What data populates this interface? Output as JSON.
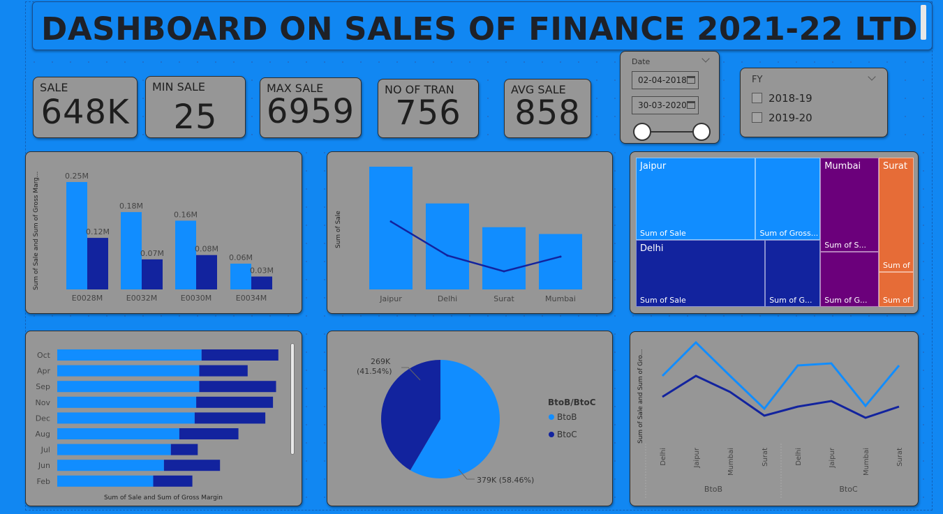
{
  "header": {
    "title": "DASHBOARD ON SALES OF FINANCE 2021-22 LTD"
  },
  "kpis": [
    {
      "label": "SALE",
      "value": "648K"
    },
    {
      "label": "MIN SALE",
      "value": "25"
    },
    {
      "label": "MAX SALE",
      "value": "6959"
    },
    {
      "label": "NO OF TRAN",
      "value": "756"
    },
    {
      "label": "AVG SALE",
      "value": "858"
    }
  ],
  "date_slicer": {
    "title": "Date",
    "start": "02-04-2018",
    "end": "30-03-2020",
    "start_icon": "calendar-icon",
    "end_icon": "calendar-icon",
    "range": [
      0,
      1
    ]
  },
  "fy_slicer": {
    "title": "FY",
    "options": [
      {
        "label": "2018-19",
        "checked": false
      },
      {
        "label": "2019-20",
        "checked": false
      }
    ]
  },
  "colors": {
    "background": "#1187f2",
    "card": "#969696",
    "sale": "#118dff",
    "margin": "#12239e",
    "purple": "#6b007b",
    "orange": "#e66c37"
  },
  "chart_data": [
    {
      "type": "bar",
      "categories": [
        "E0028M",
        "E0032M",
        "E0030M",
        "E0034M"
      ],
      "series": [
        {
          "name": "Sum of Sale",
          "values": [
            250000,
            180000,
            160000,
            60000
          ],
          "labels": [
            "0.25M",
            "0.18M",
            "0.16M",
            "0.06M"
          ]
        },
        {
          "name": "Sum of Gross Margin",
          "values": [
            120000,
            70000,
            80000,
            30000
          ],
          "labels": [
            "0.12M",
            "0.07M",
            "0.08M",
            "0.03M"
          ]
        }
      ],
      "ylabel": "Sum of Sale and Sum of Gross Marg...",
      "ylim": [
        0,
        250000
      ],
      "grid": false
    },
    {
      "type": "bar",
      "categories": [
        "Jaipur",
        "Delhi",
        "Surat",
        "Mumbai"
      ],
      "series": [
        {
          "name": "Sum of Sale",
          "type": "bar",
          "values": [
            217,
            152,
            110,
            98
          ]
        },
        {
          "name": "Sum of Gross Margin",
          "type": "line",
          "values": [
            120,
            60,
            32,
            58
          ]
        }
      ],
      "ylabel": "Sum of Sale",
      "ylim": [
        0,
        217
      ],
      "grid": false
    },
    {
      "type": "treemap",
      "cities": [
        {
          "name": "Jaipur",
          "tiles": [
            {
              "label": "Sum of Sale",
              "value": 170
            },
            {
              "label": "Sum of Gross...",
              "value": 92
            }
          ]
        },
        {
          "name": "Delhi",
          "tiles": [
            {
              "label": "Sum of Sale",
              "value": 150
            },
            {
              "label": "Sum of G...",
              "value": 64
            }
          ]
        },
        {
          "name": "Mumbai",
          "tiles": [
            {
              "label": "Sum of S...",
              "value": 95
            },
            {
              "label": "Sum of G...",
              "value": 56
            }
          ]
        },
        {
          "name": "Surat",
          "tiles": [
            {
              "label": "Sum of ...",
              "value": 69
            },
            {
              "label": "Sum of ...",
              "value": 21
            }
          ]
        }
      ]
    },
    {
      "type": "bar",
      "orientation": "horizontal",
      "categories": [
        "Oct",
        "Apr",
        "Sep",
        "Nov",
        "Dec",
        "Aug",
        "Jul",
        "Jun",
        "Feb"
      ],
      "series": [
        {
          "name": "Sum of Sale",
          "values": [
            188,
            185,
            185,
            181,
            179,
            159,
            148,
            139,
            125
          ]
        },
        {
          "name": "Sum of Gross Margin",
          "values": [
            100,
            63,
            100,
            100,
            92,
            77,
            35,
            73,
            51
          ]
        }
      ],
      "xlabel": "Sum of Sale and Sum of Gross Margin",
      "xlim": [
        0,
        300
      ]
    },
    {
      "type": "pie",
      "slices": [
        {
          "name": "BtoB",
          "value": 379000,
          "label": "379K (58.46%)"
        },
        {
          "name": "BtoC",
          "value": 269000,
          "label_value": "269K",
          "label_pct": "(41.54%)"
        }
      ],
      "legend_title": "BtoB/BtoC",
      "legend_placement": "right"
    },
    {
      "type": "line",
      "categories": [
        "Delhi",
        "Jaipur",
        "Mumbai",
        "Surat",
        "Delhi",
        "Jaipur",
        "Mumbai",
        "Surat"
      ],
      "groups": [
        {
          "label": "BtoB",
          "span": [
            0,
            3
          ]
        },
        {
          "label": "BtoC",
          "span": [
            4,
            7
          ]
        }
      ],
      "series": [
        {
          "name": "Sum of Sale",
          "values": [
            95,
            143,
            95,
            48,
            110,
            113,
            52,
            110
          ]
        },
        {
          "name": "Sum of Gross Margin",
          "values": [
            65,
            95,
            72,
            38,
            51,
            59,
            35,
            51
          ]
        }
      ],
      "ylabel": "Sum of Sale and Sum of Gro...",
      "ylim": [
        0,
        150
      ],
      "grid": false
    }
  ]
}
